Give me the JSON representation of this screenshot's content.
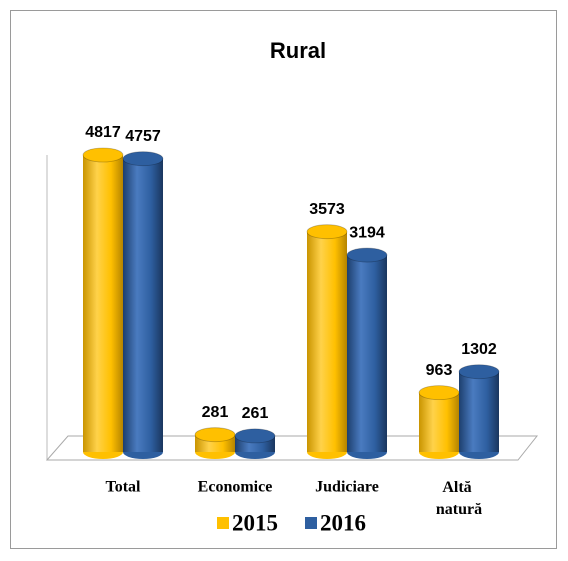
{
  "chart_data": {
    "type": "bar",
    "title": "Rural",
    "categories": [
      "Total",
      "Economice",
      "Judiciare",
      "Altă natură"
    ],
    "series": [
      {
        "name": "2015",
        "color": "#ffc000",
        "values": [
          4817,
          281,
          3573,
          963
        ]
      },
      {
        "name": "2016",
        "color": "#2e5fa0",
        "values": [
          4757,
          261,
          3194,
          1302
        ]
      }
    ],
    "legend": "bottom"
  }
}
